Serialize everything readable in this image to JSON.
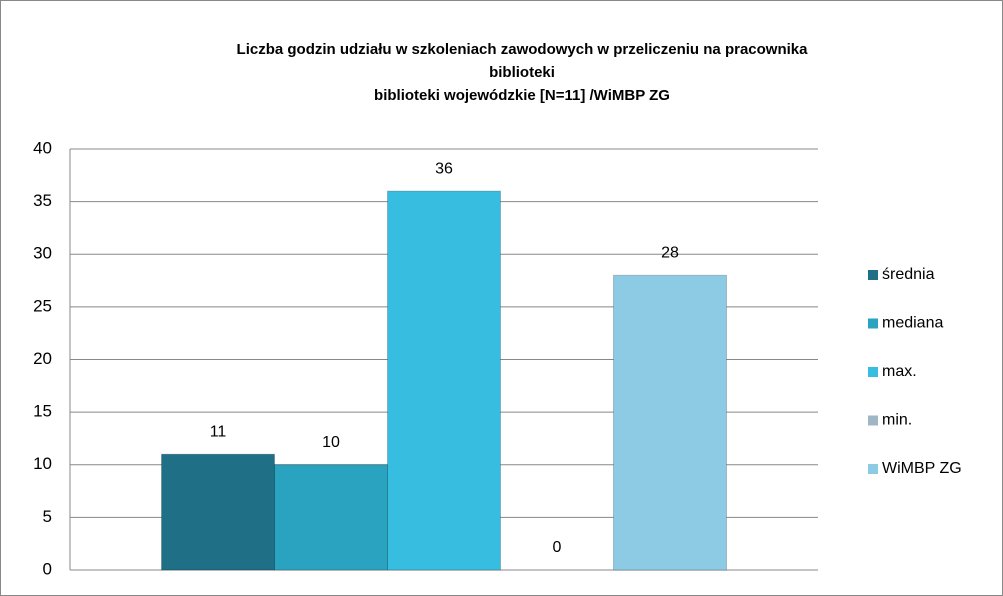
{
  "chart_data": {
    "type": "bar",
    "title": [
      "Liczba godzin udziału w szkoleniach zawodowych w przeliczeniu na pracownika",
      "biblioteki",
      "biblioteki wojewódzkie  [N=11] /WiMBP  ZG"
    ],
    "categories": [
      null
    ],
    "series": [
      {
        "name": "średnia",
        "color": "#1f6f87",
        "values": [
          11
        ]
      },
      {
        "name": "mediana",
        "color": "#2aa3c1",
        "values": [
          10
        ]
      },
      {
        "name": "max.",
        "color": "#37bde0",
        "values": [
          36
        ]
      },
      {
        "name": "min.",
        "color": "#9fb6c6",
        "values": [
          0
        ]
      },
      {
        "name": "WiMBP ZG",
        "color": "#8dcbe4",
        "values": [
          28
        ]
      }
    ],
    "ylim": [
      0,
      40
    ],
    "yticks": [
      0,
      5,
      10,
      15,
      20,
      25,
      30,
      35,
      40
    ],
    "grid": true,
    "legend": "right"
  }
}
